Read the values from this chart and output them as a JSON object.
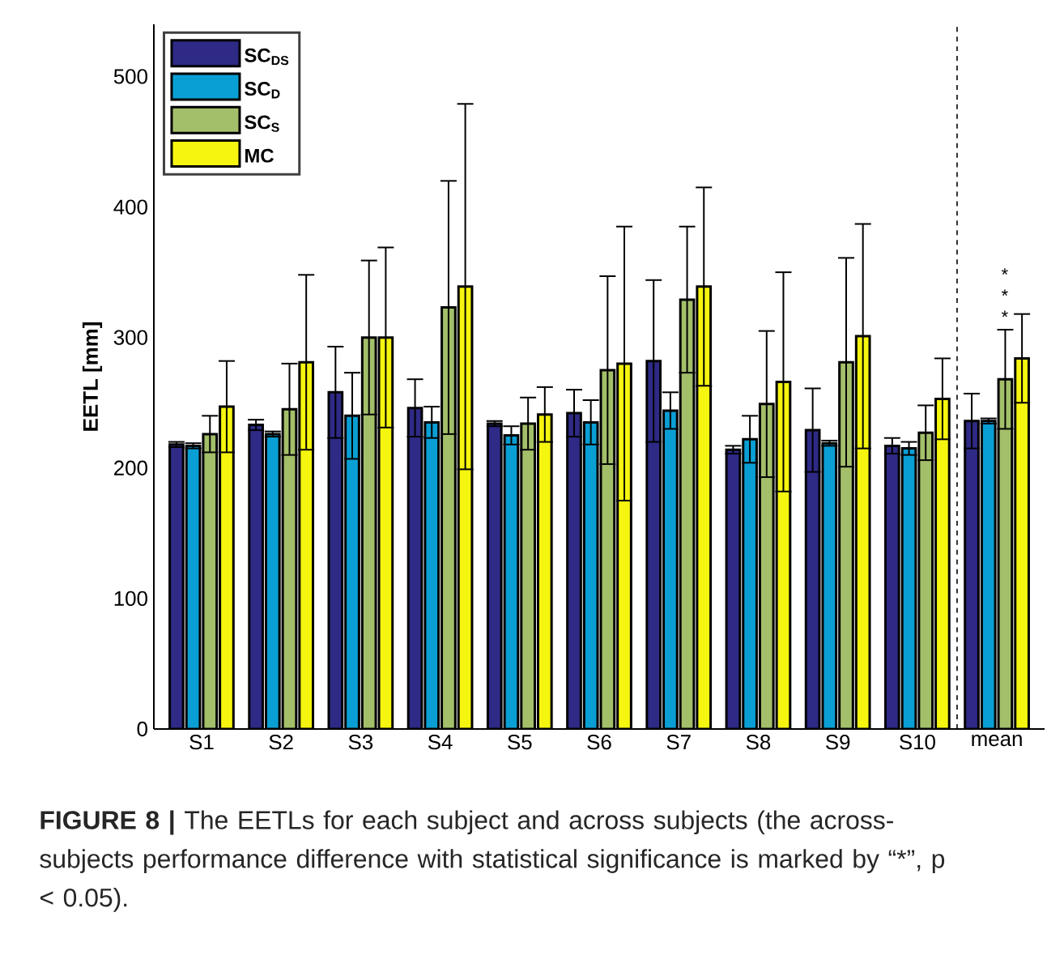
{
  "chart_data": {
    "type": "bar",
    "ylabel": "EETL [mm]",
    "categories": [
      "S1",
      "S2",
      "S3",
      "S4",
      "S5",
      "S6",
      "S7",
      "S8",
      "S9",
      "S10",
      "mean"
    ],
    "series": [
      {
        "name": "SC$_{DS}$",
        "color": "#2e2a85",
        "values": [
          218,
          233,
          258,
          246,
          234,
          242,
          282,
          214,
          229,
          217,
          236
        ],
        "errors": [
          2,
          4,
          35,
          22,
          2,
          18,
          62,
          3,
          32,
          6,
          21
        ]
      },
      {
        "name": "SC$_{D}$",
        "color": "#0a9fd4",
        "values": [
          217,
          226,
          240,
          235,
          225,
          235,
          244,
          222,
          219,
          215,
          236
        ],
        "errors": [
          2,
          2,
          33,
          12,
          7,
          17,
          14,
          18,
          2,
          5,
          2
        ]
      },
      {
        "name": "SC$_{S}$",
        "color": "#a3bf6a",
        "values": [
          226,
          245,
          300,
          323,
          234,
          275,
          329,
          249,
          281,
          227,
          268
        ],
        "errors": [
          14,
          35,
          59,
          97,
          20,
          72,
          56,
          56,
          80,
          21,
          38
        ]
      },
      {
        "name": "MC",
        "color": "#f5f50f",
        "values": [
          247,
          281,
          300,
          339,
          241,
          280,
          339,
          266,
          301,
          253,
          284
        ],
        "errors": [
          35,
          67,
          69,
          140,
          21,
          105,
          76,
          84,
          86,
          31,
          34
        ]
      }
    ],
    "ylim": [
      0,
      540
    ],
    "yticks": [
      0,
      100,
      200,
      300,
      400,
      500
    ],
    "grid": false,
    "legend": "top left",
    "annotations": [
      "*",
      "*",
      "*",
      "**FIGURE 8 |** The EETLs for each subject and across subjects (the across-subjects performance difference with statistical significance is marked by “*”, p < 0.05)."
    ]
  }
}
